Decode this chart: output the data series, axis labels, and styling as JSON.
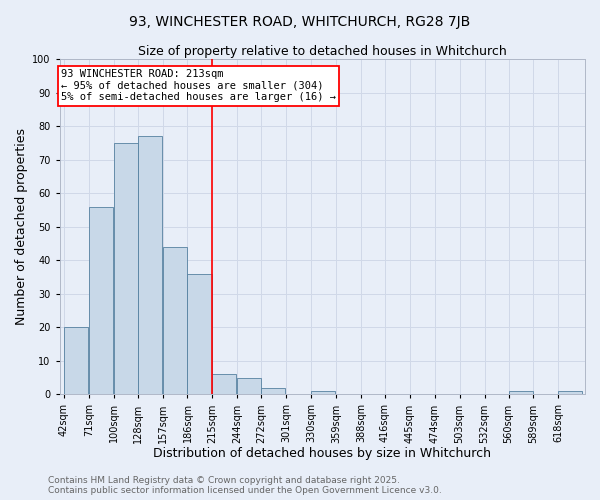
{
  "title": "93, WINCHESTER ROAD, WHITCHURCH, RG28 7JB",
  "subtitle": "Size of property relative to detached houses in Whitchurch",
  "xlabel": "Distribution of detached houses by size in Whitchurch",
  "ylabel": "Number of detached properties",
  "bins": [
    42,
    71,
    100,
    128,
    157,
    186,
    215,
    244,
    272,
    301,
    330,
    359,
    388,
    416,
    445,
    474,
    503,
    532,
    560,
    589,
    618
  ],
  "bin_labels": [
    "42sqm",
    "71sqm",
    "100sqm",
    "128sqm",
    "157sqm",
    "186sqm",
    "215sqm",
    "244sqm",
    "272sqm",
    "301sqm",
    "330sqm",
    "359sqm",
    "388sqm",
    "416sqm",
    "445sqm",
    "474sqm",
    "503sqm",
    "532sqm",
    "560sqm",
    "589sqm",
    "618sqm"
  ],
  "counts": [
    20,
    56,
    75,
    77,
    44,
    36,
    6,
    5,
    2,
    0,
    1,
    0,
    0,
    0,
    0,
    0,
    0,
    0,
    1,
    0,
    1
  ],
  "bar_color": "#c8d8e8",
  "bar_edge_color": "#5580a0",
  "reference_line_x": 215,
  "reference_line_color": "red",
  "annotation_text": "93 WINCHESTER ROAD: 213sqm\n← 95% of detached houses are smaller (304)\n5% of semi-detached houses are larger (16) →",
  "annotation_box_color": "white",
  "annotation_box_edge_color": "red",
  "ylim": [
    0,
    100
  ],
  "yticks": [
    0,
    10,
    20,
    30,
    40,
    50,
    60,
    70,
    80,
    90,
    100
  ],
  "grid_color": "#d0d8e8",
  "background_color": "#e8eef8",
  "footer_line1": "Contains HM Land Registry data © Crown copyright and database right 2025.",
  "footer_line2": "Contains public sector information licensed under the Open Government Licence v3.0.",
  "title_fontsize": 10,
  "subtitle_fontsize": 9,
  "axis_label_fontsize": 9,
  "tick_fontsize": 7,
  "annotation_fontsize": 7.5,
  "footer_fontsize": 6.5
}
